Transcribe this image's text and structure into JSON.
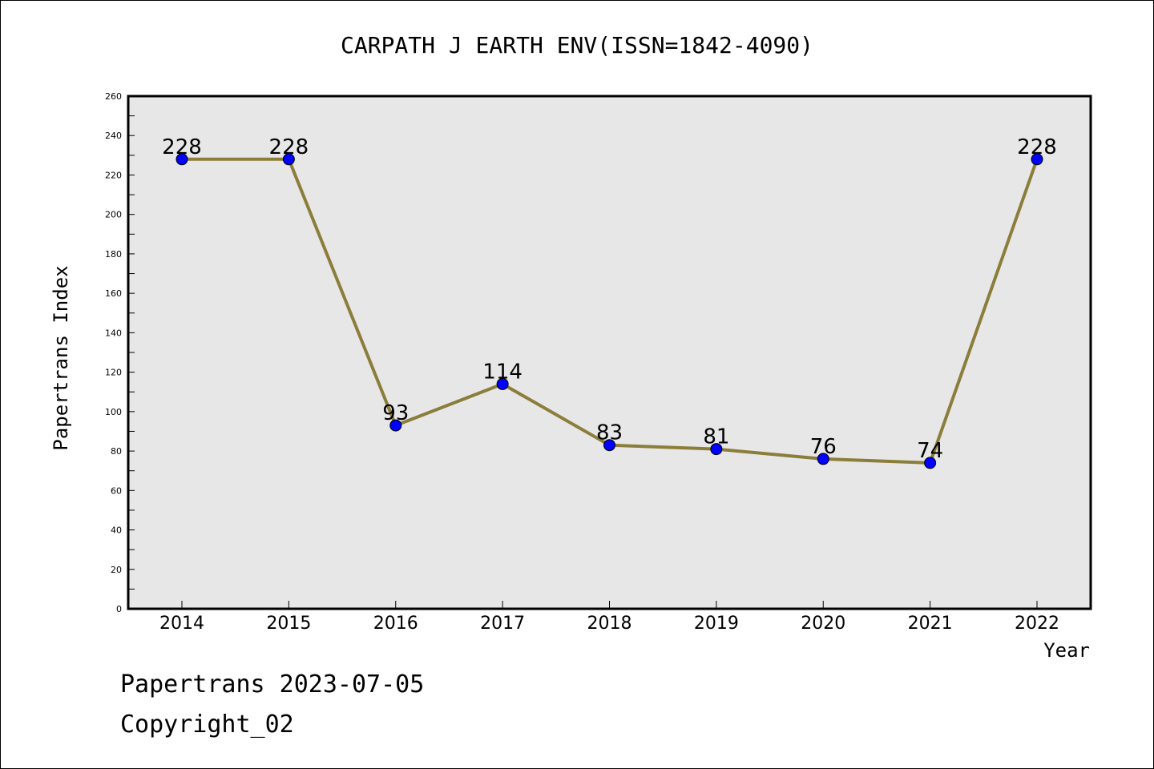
{
  "chart_data": {
    "type": "line",
    "title": "CARPATH J EARTH ENV(ISSN=1842-4090)",
    "xlabel": "Year",
    "ylabel": "Papertrans Index",
    "categories": [
      "2014",
      "2015",
      "2016",
      "2017",
      "2018",
      "2019",
      "2020",
      "2021",
      "2022"
    ],
    "series": [
      {
        "values": [
          228,
          228,
          93,
          114,
          83,
          81,
          76,
          74,
          228
        ]
      }
    ],
    "ylim": [
      0,
      260
    ],
    "yticks": [
      "0",
      "20",
      "40",
      "60",
      "80",
      "100",
      "120",
      "140",
      "160",
      "180",
      "200",
      "220",
      "240",
      "260"
    ],
    "grid": false,
    "colors": {
      "plot_background": "#e7e7e7",
      "line": "#8b7d3a",
      "marker": "#0000ff"
    }
  },
  "footer": {
    "line1": "Papertrans 2023-07-05",
    "line2": "Copyright_02"
  }
}
